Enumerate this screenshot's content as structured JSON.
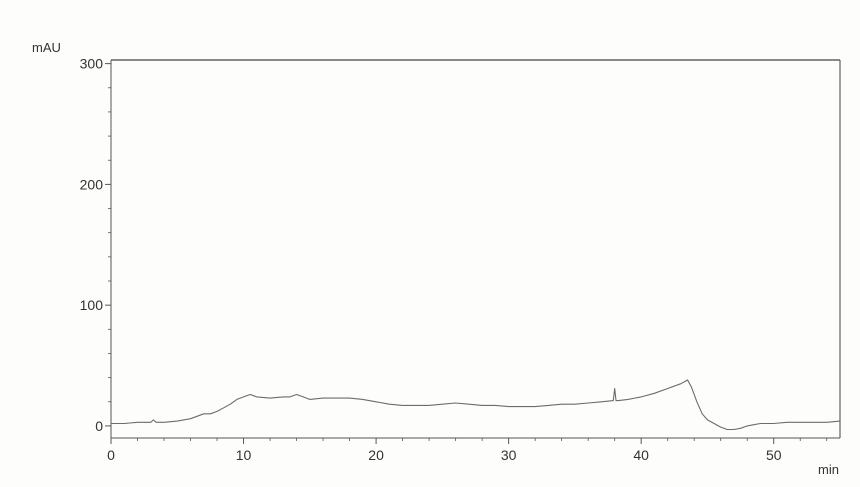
{
  "chart_data": {
    "type": "line",
    "ylabel": "mAU",
    "xlabel": "min",
    "xlim": [
      0,
      55
    ],
    "ylim": [
      -10,
      303
    ],
    "x_ticks": [
      0,
      10,
      20,
      30,
      40,
      50
    ],
    "y_ticks": [
      0,
      100,
      200,
      300
    ],
    "grid": false,
    "colors": {
      "axis": "#555555",
      "trace": "#6c6c6c",
      "frame": "#444444"
    },
    "series": [
      {
        "x": [
          0,
          1,
          2,
          3,
          3.2,
          3.4,
          4,
          5,
          6,
          7,
          7.5,
          8,
          8.5,
          9,
          9.5,
          10,
          10.5,
          11,
          12,
          13,
          13.5,
          14,
          14.5,
          15,
          16,
          17,
          18,
          19,
          20,
          21,
          22,
          23,
          24,
          25,
          26,
          27,
          28,
          29,
          30,
          31,
          32,
          33,
          34,
          35,
          36,
          37,
          37.9,
          38.0,
          38.1,
          38.3,
          39,
          40,
          41,
          42,
          43,
          43.5,
          43.8,
          44.2,
          44.6,
          45,
          45.5,
          46,
          46.5,
          47,
          47.5,
          48,
          48.5,
          49,
          50,
          51,
          52,
          53,
          54,
          55
        ],
        "y": [
          2,
          2,
          3,
          3,
          5,
          3,
          3,
          4,
          6,
          10,
          10,
          12,
          15,
          18,
          22,
          24,
          26,
          24,
          23,
          24,
          24,
          26,
          24,
          22,
          23,
          23,
          23,
          22,
          20,
          18,
          17,
          17,
          17,
          18,
          19,
          18,
          17,
          17,
          16,
          16,
          16,
          17,
          18,
          18,
          19,
          20,
          21,
          31,
          21,
          21,
          22,
          24,
          27,
          31,
          35,
          38,
          32,
          20,
          10,
          5,
          2,
          -1,
          -3,
          -3,
          -2,
          0,
          1,
          2,
          2,
          3,
          3,
          3,
          3,
          4
        ]
      }
    ]
  }
}
